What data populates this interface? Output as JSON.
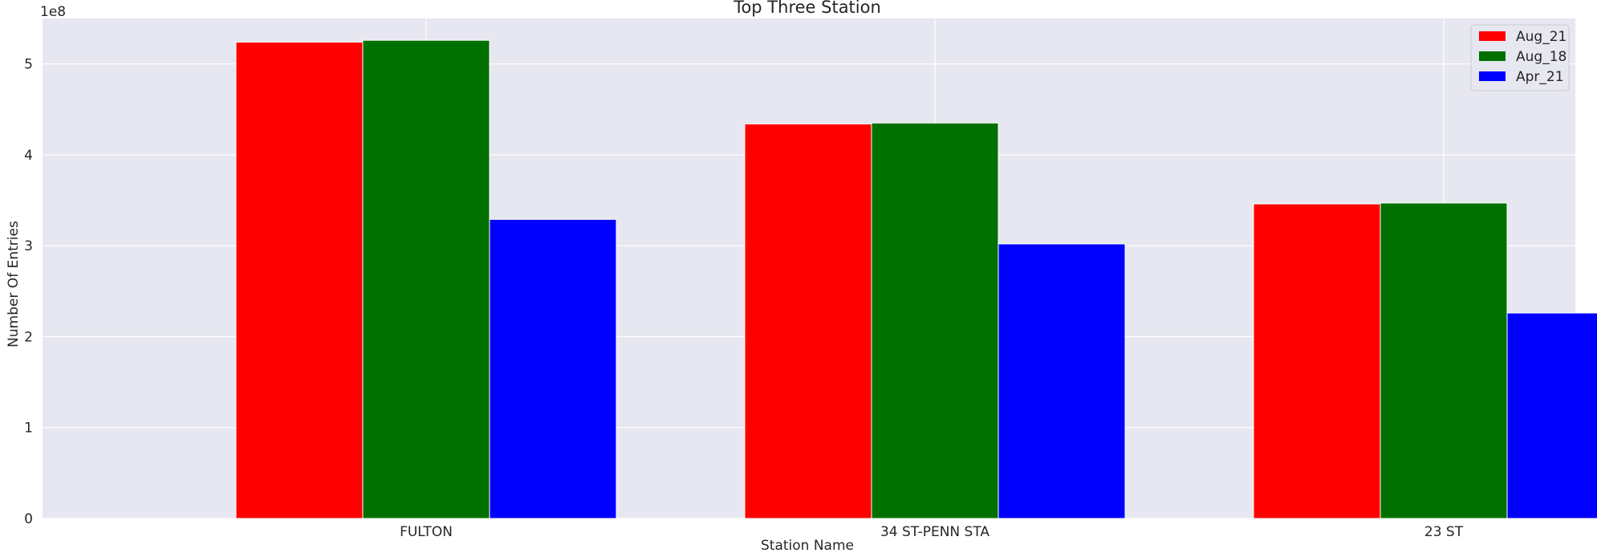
{
  "chart_data": {
    "type": "bar",
    "title": "Top Three Station",
    "xlabel": "Station Name",
    "ylabel": "Number Of Entries",
    "offset_text": "1e8",
    "categories": [
      "FULTON",
      "34 ST-PENN STA",
      "23 ST"
    ],
    "series": [
      {
        "name": "Aug_21",
        "color": "#ff0000",
        "values": [
          524000000,
          434000000,
          346000000
        ]
      },
      {
        "name": "Aug_18",
        "color": "#007000",
        "values": [
          526000000,
          435000000,
          347000000
        ]
      },
      {
        "name": "Apr_21",
        "color": "#0000ff",
        "values": [
          329000000,
          302000000,
          226000000
        ]
      }
    ],
    "ylim": [
      0,
      550000000
    ],
    "yticks": [
      0,
      100000000,
      200000000,
      300000000,
      400000000,
      500000000
    ],
    "ytick_labels": [
      "0",
      "1",
      "2",
      "3",
      "4",
      "5"
    ],
    "grid": true,
    "legend_position": "top-right",
    "background_color": "#e6e7f0",
    "grid_color": "#ffffff"
  }
}
